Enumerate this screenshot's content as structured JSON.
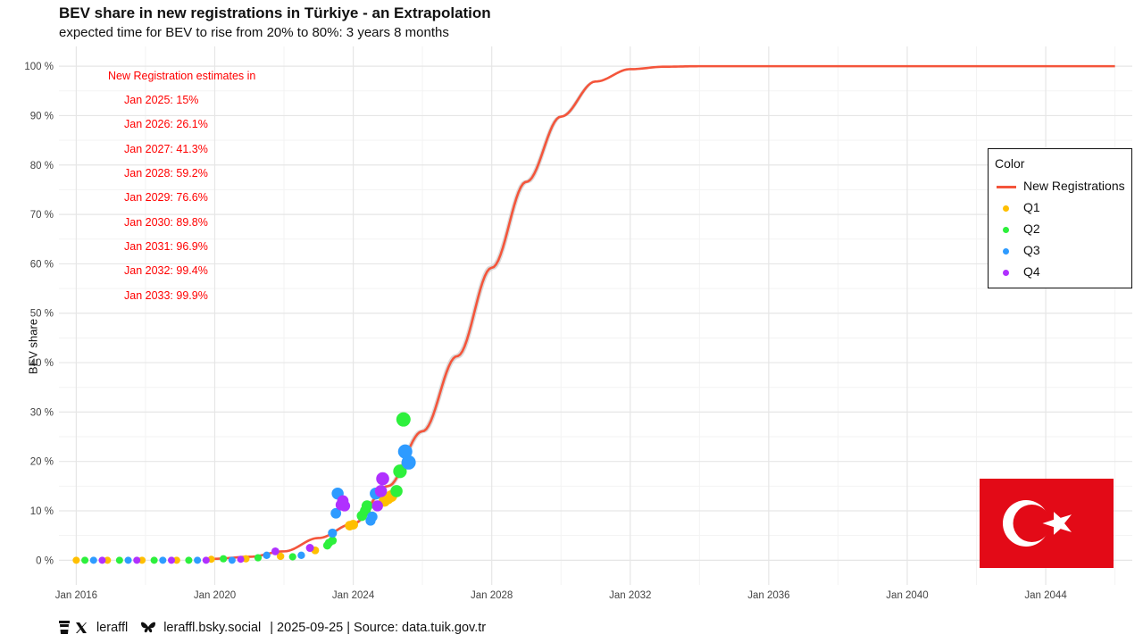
{
  "title": "BEV share in new registrations in Türkiye - an Extrapolation",
  "subtitle": "expected time for BEV to rise from 20% to 80%: 3 years 8 months",
  "footer": {
    "x_handle": "leraffl",
    "bsky_handle": "leraffl.bsky.social",
    "rest": "| 2025-09-25 | Source: data.tuik.gov.tr"
  },
  "legend": {
    "title": "Color",
    "entries": [
      {
        "label": "New Registrations",
        "kind": "line",
        "color": "#f4553b"
      },
      {
        "label": "Q1",
        "kind": "point",
        "color": "#ffbf00"
      },
      {
        "label": "Q2",
        "kind": "point",
        "color": "#2df03c"
      },
      {
        "label": "Q3",
        "kind": "point",
        "color": "#2e9bff"
      },
      {
        "label": "Q4",
        "kind": "point",
        "color": "#b030ff"
      }
    ]
  },
  "estimates": {
    "heading": "New Registration estimates in",
    "items": [
      "Jan 2025: 15%",
      "Jan 2026: 26.1%",
      "Jan 2027: 41.3%",
      "Jan 2028: 59.2%",
      "Jan 2029: 76.6%",
      "Jan 2030: 89.8%",
      "Jan 2031: 96.9%",
      "Jan 2032: 99.4%",
      "Jan 2033: 99.9%"
    ]
  },
  "flag": {
    "name": "Türkiye flag",
    "background": "#e30a17",
    "foreground": "#ffffff"
  },
  "chart_data": {
    "type": "scatter",
    "ylabel": "BEV share",
    "xlabel": "",
    "xlim": [
      2015.5,
      2046.5
    ],
    "ylim": [
      -5,
      104
    ],
    "x_ticks": [
      "Jan 2016",
      "Jan 2020",
      "Jan 2024",
      "Jan 2028",
      "Jan 2032",
      "Jan 2036",
      "Jan 2040",
      "Jan 2044"
    ],
    "y_ticks": [
      "0 %",
      "10 %",
      "20 %",
      "30 %",
      "40 %",
      "50 %",
      "60 %",
      "70 %",
      "80 %",
      "90 %",
      "100 %"
    ],
    "curve": {
      "name": "New Registrations",
      "color": "#f4553b",
      "x_start": 2020.0,
      "x_end": 2046.0,
      "points": [
        [
          2020,
          0.3
        ],
        [
          2021,
          0.7
        ],
        [
          2022,
          1.8
        ],
        [
          2023,
          4.5
        ],
        [
          2024,
          7.4
        ],
        [
          2025,
          15
        ],
        [
          2026,
          26.1
        ],
        [
          2027,
          41.3
        ],
        [
          2028,
          59.2
        ],
        [
          2029,
          76.6
        ],
        [
          2030,
          89.8
        ],
        [
          2031,
          96.9
        ],
        [
          2032,
          99.4
        ],
        [
          2033,
          99.9
        ],
        [
          2034,
          100
        ],
        [
          2046,
          100
        ]
      ]
    },
    "series": [
      {
        "name": "Q1",
        "color": "#ffbf00",
        "points": [
          [
            2016.0,
            0
          ],
          [
            2016.9,
            0
          ],
          [
            2017.9,
            0
          ],
          [
            2018.9,
            0
          ],
          [
            2019.9,
            0.2
          ],
          [
            2020.9,
            0.3
          ],
          [
            2021.9,
            0.8
          ],
          [
            2022.9,
            2
          ],
          [
            2023.9,
            7
          ],
          [
            2024.0,
            7.2
          ],
          [
            2024.9,
            12
          ],
          [
            2025.0,
            12.5
          ],
          [
            2025.1,
            13
          ]
        ]
      },
      {
        "name": "Q2",
        "color": "#2df03c",
        "points": [
          [
            2016.25,
            0
          ],
          [
            2017.25,
            0
          ],
          [
            2018.25,
            0
          ],
          [
            2019.25,
            0
          ],
          [
            2020.25,
            0.3
          ],
          [
            2021.25,
            0.5
          ],
          [
            2022.25,
            0.7
          ],
          [
            2023.25,
            3
          ],
          [
            2023.3,
            3.5
          ],
          [
            2023.4,
            4
          ],
          [
            2024.25,
            9
          ],
          [
            2024.35,
            10
          ],
          [
            2024.4,
            11
          ],
          [
            2025.25,
            14
          ],
          [
            2025.35,
            18
          ],
          [
            2025.45,
            28.5
          ]
        ]
      },
      {
        "name": "Q3",
        "color": "#2e9bff",
        "points": [
          [
            2016.5,
            0
          ],
          [
            2017.5,
            0
          ],
          [
            2018.5,
            0
          ],
          [
            2019.5,
            0
          ],
          [
            2020.5,
            0
          ],
          [
            2021.5,
            1
          ],
          [
            2022.5,
            1
          ],
          [
            2023.4,
            5.5
          ],
          [
            2023.5,
            9.5
          ],
          [
            2023.55,
            13.5
          ],
          [
            2024.5,
            8
          ],
          [
            2024.55,
            8.8
          ],
          [
            2024.65,
            13.5
          ],
          [
            2025.5,
            22
          ],
          [
            2025.6,
            19.8
          ]
        ]
      },
      {
        "name": "Q4",
        "color": "#b030ff",
        "points": [
          [
            2016.75,
            0
          ],
          [
            2017.75,
            0
          ],
          [
            2018.75,
            0
          ],
          [
            2019.75,
            0
          ],
          [
            2020.75,
            0.2
          ],
          [
            2021.75,
            1.8
          ],
          [
            2022.75,
            2.5
          ],
          [
            2023.65,
            11.2
          ],
          [
            2023.7,
            12
          ],
          [
            2023.75,
            11
          ],
          [
            2024.7,
            11
          ],
          [
            2024.8,
            14
          ],
          [
            2024.85,
            16.5
          ]
        ]
      }
    ]
  }
}
